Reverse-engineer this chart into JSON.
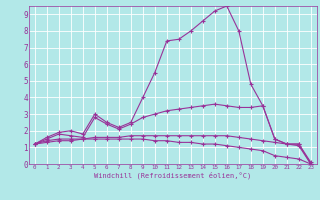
{
  "xlabel": "Windchill (Refroidissement éolien,°C)",
  "ylabel": "",
  "bg_color": "#b2e8e8",
  "line_color": "#993399",
  "xlim": [
    -0.5,
    23.5
  ],
  "ylim": [
    0,
    9.5
  ],
  "xticks": [
    0,
    1,
    2,
    3,
    4,
    5,
    6,
    7,
    8,
    9,
    10,
    11,
    12,
    13,
    14,
    15,
    16,
    17,
    18,
    19,
    20,
    21,
    22,
    23
  ],
  "yticks": [
    0,
    1,
    2,
    3,
    4,
    5,
    6,
    7,
    8,
    9
  ],
  "line1_x": [
    0,
    1,
    2,
    3,
    4,
    5,
    6,
    7,
    8,
    9,
    10,
    11,
    12,
    13,
    14,
    15,
    16,
    17,
    18,
    19,
    20,
    21,
    22,
    23
  ],
  "line1_y": [
    1.2,
    1.6,
    1.9,
    2.0,
    1.8,
    3.0,
    2.5,
    2.2,
    2.5,
    4.0,
    5.5,
    7.4,
    7.5,
    8.0,
    8.6,
    9.2,
    9.5,
    8.0,
    4.8,
    3.5,
    1.5,
    1.2,
    1.2,
    0.1
  ],
  "line2_x": [
    0,
    1,
    2,
    3,
    4,
    5,
    6,
    7,
    8,
    9,
    10,
    11,
    12,
    13,
    14,
    15,
    16,
    17,
    18,
    19,
    20,
    21,
    22,
    23
  ],
  "line2_y": [
    1.2,
    1.5,
    1.8,
    1.7,
    1.6,
    2.8,
    2.4,
    2.1,
    2.4,
    2.8,
    3.0,
    3.2,
    3.3,
    3.4,
    3.5,
    3.6,
    3.5,
    3.4,
    3.4,
    3.5,
    1.5,
    1.2,
    1.1,
    0.0
  ],
  "line3_x": [
    0,
    1,
    2,
    3,
    4,
    5,
    6,
    7,
    8,
    9,
    10,
    11,
    12,
    13,
    14,
    15,
    16,
    17,
    18,
    19,
    20,
    21,
    22,
    23
  ],
  "line3_y": [
    1.2,
    1.4,
    1.5,
    1.5,
    1.5,
    1.6,
    1.6,
    1.6,
    1.7,
    1.7,
    1.7,
    1.7,
    1.7,
    1.7,
    1.7,
    1.7,
    1.7,
    1.6,
    1.5,
    1.4,
    1.3,
    1.2,
    1.2,
    0.0
  ],
  "line4_x": [
    0,
    1,
    2,
    3,
    4,
    5,
    6,
    7,
    8,
    9,
    10,
    11,
    12,
    13,
    14,
    15,
    16,
    17,
    18,
    19,
    20,
    21,
    22,
    23
  ],
  "line4_y": [
    1.2,
    1.3,
    1.4,
    1.4,
    1.5,
    1.5,
    1.5,
    1.5,
    1.5,
    1.5,
    1.4,
    1.4,
    1.3,
    1.3,
    1.2,
    1.2,
    1.1,
    1.0,
    0.9,
    0.8,
    0.5,
    0.4,
    0.3,
    0.0
  ]
}
